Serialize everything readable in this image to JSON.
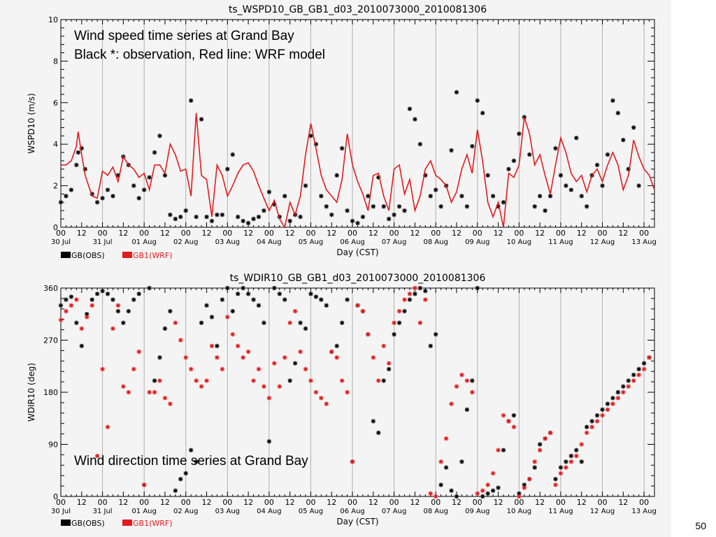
{
  "page": {
    "slide_number": "50"
  },
  "colors": {
    "obs": "#000000",
    "wrf": "#e41a1c",
    "background": "#f4f4f4",
    "grid": "#b0b0b0"
  },
  "x_axis": {
    "days": [
      "30 Jul",
      "31 Jul",
      "01 Aug",
      "02 Aug",
      "03 Aug",
      "04 Aug",
      "05 Aug",
      "06 Aug",
      "07 Aug",
      "08 Aug",
      "09 Aug",
      "10 Aug",
      "11 Aug",
      "12 Aug",
      "13 Aug"
    ],
    "hour_labels": [
      "00",
      "12"
    ],
    "xlabel": "Day (CST)"
  },
  "legend": {
    "obs_label": "GB(OBS)",
    "wrf_label": "GB1(WRF)"
  },
  "chart_data": [
    {
      "type": "line",
      "title": "ts_WSPD10_GB_GB1_d03_2010073000_2010081306",
      "annotation_lines": [
        "Wind speed time series at Grand Bay",
        "Black *: observation, Red line: WRF model"
      ],
      "ylabel": "WSPD10 (m/s)",
      "xlabel": "Day (CST)",
      "xlim_hours": [
        0,
        342
      ],
      "ylim": [
        0,
        10
      ],
      "yticks": [
        0,
        2,
        4,
        6,
        8,
        10
      ],
      "grid": "vertical",
      "legend_placement": "bottom-left",
      "x_unit": "hours since 30 Jul 00 CST",
      "series": [
        {
          "name": "GB(OBS)",
          "style": "asterisk",
          "x": [
            0,
            3,
            6,
            9,
            10,
            12,
            14,
            18,
            21,
            24,
            27,
            30,
            33,
            36,
            39,
            42,
            45,
            48,
            51,
            54,
            57,
            60,
            63,
            66,
            69,
            72,
            75,
            78,
            81,
            84,
            87,
            90,
            93,
            96,
            99,
            102,
            105,
            108,
            111,
            114,
            117,
            120,
            123,
            126,
            129,
            132,
            135,
            138,
            141,
            144,
            147,
            150,
            153,
            156,
            159,
            162,
            165,
            168,
            171,
            174,
            177,
            180,
            183,
            186,
            189,
            192,
            195,
            198,
            201,
            204,
            207,
            210,
            213,
            216,
            219,
            222,
            225,
            228,
            231,
            234,
            237,
            240,
            243,
            246,
            249,
            252,
            255,
            258,
            261,
            264,
            267,
            270,
            273,
            276,
            279,
            282,
            285,
            288,
            291,
            294,
            297,
            300,
            303,
            306,
            309,
            312,
            315,
            318,
            321,
            324,
            327,
            330,
            333
          ],
          "y": [
            1.2,
            1.5,
            1.8,
            3.0,
            3.6,
            3.8,
            2.8,
            1.6,
            1.2,
            1.4,
            1.8,
            1.5,
            2.5,
            3.4,
            3.0,
            2.0,
            1.4,
            1.8,
            2.4,
            3.6,
            4.4,
            2.5,
            0.6,
            0.4,
            0.5,
            0.8,
            6.1,
            0.5,
            5.2,
            0.5,
            0.3,
            0.6,
            0.6,
            2.8,
            3.5,
            0.5,
            0.3,
            0.2,
            0.4,
            0.5,
            0.8,
            1.7,
            1.1,
            0.5,
            1.5,
            0.3,
            0.6,
            0.5,
            2.0,
            4.4,
            4.0,
            1.5,
            1.0,
            0.6,
            2.5,
            3.8,
            0.8,
            0.3,
            0.2,
            0.5,
            1.5,
            1.0,
            2.4,
            1.0,
            0.4,
            0.6,
            1.0,
            0.8,
            5.7,
            5.2,
            4.0,
            2.5,
            1.5,
            1.8,
            1.0,
            2.0,
            3.7,
            6.5,
            1.5,
            1.0,
            3.9,
            6.1,
            5.5,
            2.5,
            1.5,
            1.0,
            1.2,
            2.8,
            3.2,
            4.5,
            5.3,
            3.5,
            1.0,
            1.5,
            0.8,
            1.5,
            3.8,
            2.5,
            2.0,
            1.8,
            4.3,
            1.5,
            1.0,
            2.5,
            3.0,
            2.0,
            3.5,
            6.1,
            5.5,
            4.2,
            2.8,
            4.8,
            2.0
          ]
        },
        {
          "name": "GB1(WRF)",
          "style": "line",
          "x": [
            0,
            3,
            6,
            9,
            10,
            12,
            14,
            18,
            21,
            24,
            27,
            30,
            33,
            36,
            39,
            42,
            45,
            48,
            51,
            54,
            57,
            60,
            63,
            66,
            69,
            72,
            75,
            78,
            81,
            84,
            87,
            90,
            93,
            96,
            99,
            102,
            105,
            108,
            111,
            114,
            117,
            120,
            123,
            126,
            129,
            132,
            135,
            138,
            141,
            144,
            147,
            150,
            153,
            156,
            159,
            162,
            165,
            168,
            171,
            174,
            177,
            180,
            183,
            186,
            189,
            192,
            195,
            198,
            201,
            204,
            207,
            210,
            213,
            216,
            219,
            222,
            225,
            228,
            231,
            234,
            237,
            240,
            243,
            246,
            249,
            252,
            255,
            258,
            261,
            264,
            267,
            270,
            273,
            276,
            279,
            282,
            285,
            288,
            291,
            294,
            297,
            300,
            303,
            306,
            309,
            312,
            315,
            318,
            321,
            324,
            327,
            330,
            333,
            336,
            339,
            342
          ],
          "y": [
            3.0,
            3.0,
            3.2,
            3.9,
            4.6,
            3.5,
            2.5,
            1.5,
            1.4,
            2.7,
            2.5,
            2.9,
            2.2,
            3.4,
            3.0,
            2.8,
            2.4,
            2.6,
            1.8,
            3.0,
            3.0,
            2.6,
            4.0,
            3.5,
            2.7,
            2.8,
            1.5,
            5.5,
            2.5,
            2.3,
            0.5,
            3.0,
            2.5,
            1.5,
            2.0,
            2.6,
            3.0,
            3.1,
            2.7,
            2.0,
            1.4,
            0.8,
            1.3,
            0.4,
            0.0,
            1.2,
            0.6,
            1.5,
            3.5,
            5.0,
            3.8,
            2.5,
            1.8,
            1.5,
            1.2,
            2.3,
            4.5,
            3.0,
            2.2,
            1.6,
            0.8,
            2.5,
            2.6,
            1.5,
            0.8,
            2.8,
            3.0,
            1.6,
            2.3,
            0.8,
            1.5,
            2.8,
            3.2,
            2.5,
            2.3,
            2.0,
            1.2,
            1.7,
            2.8,
            3.5,
            2.6,
            4.7,
            3.2,
            1.2,
            0.5,
            1.2,
            0.0,
            2.6,
            2.4,
            3.0,
            5.3,
            4.5,
            3.0,
            3.5,
            2.5,
            1.6,
            3.0,
            4.3,
            3.6,
            2.6,
            2.2,
            2.5,
            1.7,
            2.5,
            2.8,
            2.2,
            3.0,
            3.6,
            3.0,
            1.8,
            2.5,
            4.2,
            3.4,
            2.8,
            2.5,
            1.8
          ]
        }
      ]
    },
    {
      "type": "scatter",
      "title": "ts_WDIR10_GB_GB1_d03_2010073000_2010081306",
      "annotation_lines": [
        "Wind direction time series at Grand Bay"
      ],
      "ylabel": "WDIR10 (deg)",
      "xlabel": "Day (CST)",
      "xlim_hours": [
        0,
        342
      ],
      "ylim": [
        0,
        360
      ],
      "yticks": [
        0,
        90,
        180,
        270,
        360
      ],
      "grid": "vertical",
      "legend_placement": "bottom-left",
      "x_unit": "hours since 30 Jul 00 CST",
      "series": [
        {
          "name": "GB(OBS)",
          "style": "asterisk",
          "x": [
            0,
            3,
            6,
            9,
            12,
            15,
            18,
            21,
            24,
            27,
            30,
            33,
            36,
            39,
            42,
            45,
            48,
            51,
            54,
            57,
            60,
            63,
            66,
            69,
            72,
            75,
            78,
            81,
            84,
            87,
            90,
            93,
            96,
            99,
            102,
            105,
            108,
            111,
            114,
            117,
            120,
            123,
            126,
            129,
            132,
            135,
            138,
            141,
            144,
            147,
            150,
            153,
            156,
            159,
            162,
            165,
            168,
            171,
            174,
            177,
            180,
            183,
            186,
            189,
            192,
            195,
            198,
            201,
            204,
            207,
            210,
            213,
            216,
            219,
            222,
            225,
            228,
            231,
            234,
            237,
            240,
            243,
            246,
            249,
            252,
            255,
            258,
            261,
            264,
            267,
            270,
            273,
            276,
            279,
            282,
            285,
            288,
            291,
            294,
            297,
            300,
            303,
            306,
            309,
            312,
            315,
            318,
            321,
            324,
            327,
            330,
            333,
            336,
            339
          ],
          "y": [
            330,
            340,
            345,
            300,
            260,
            315,
            340,
            350,
            355,
            350,
            340,
            320,
            300,
            320,
            340,
            350,
            20,
            360,
            200,
            240,
            290,
            320,
            10,
            30,
            40,
            80,
            60,
            300,
            330,
            310,
            260,
            340,
            360,
            320,
            350,
            360,
            350,
            340,
            330,
            300,
            95,
            360,
            350,
            340,
            200,
            230,
            300,
            290,
            350,
            345,
            340,
            330,
            250,
            260,
            300,
            340,
            60,
            330,
            320,
            280,
            130,
            110,
            200,
            220,
            280,
            300,
            320,
            340,
            350,
            360,
            355,
            260,
            280,
            20,
            50,
            10,
            0,
            60,
            150,
            200,
            360,
            0,
            5,
            10,
            15,
            80,
            130,
            140,
            5,
            20,
            30,
            50,
            90,
            100,
            110,
            30,
            50,
            60,
            70,
            80,
            60,
            120,
            130,
            140,
            150,
            160,
            170,
            180,
            190,
            200,
            210,
            220,
            230,
            240
          ]
        },
        {
          "name": "GB1(WRF)",
          "style": "asterisk",
          "x": [
            0,
            3,
            6,
            9,
            12,
            15,
            18,
            21,
            24,
            27,
            30,
            33,
            36,
            39,
            42,
            45,
            48,
            51,
            54,
            57,
            60,
            63,
            66,
            69,
            72,
            75,
            78,
            81,
            84,
            87,
            90,
            93,
            96,
            99,
            102,
            105,
            108,
            111,
            114,
            117,
            120,
            123,
            126,
            129,
            132,
            135,
            138,
            141,
            144,
            147,
            150,
            153,
            156,
            159,
            162,
            165,
            168,
            171,
            174,
            177,
            180,
            183,
            186,
            189,
            192,
            195,
            198,
            201,
            204,
            207,
            210,
            213,
            216,
            219,
            222,
            225,
            228,
            231,
            234,
            237,
            240,
            243,
            246,
            249,
            252,
            255,
            258,
            261,
            264,
            267,
            270,
            273,
            276,
            279,
            282,
            285,
            288,
            291,
            294,
            297,
            300,
            303,
            306,
            309,
            312,
            315,
            318,
            321,
            324,
            327,
            330,
            333,
            336,
            339
          ],
          "y": [
            305,
            320,
            330,
            340,
            290,
            310,
            330,
            70,
            220,
            120,
            290,
            330,
            190,
            180,
            220,
            250,
            20,
            180,
            180,
            200,
            170,
            160,
            300,
            270,
            240,
            220,
            200,
            190,
            200,
            260,
            240,
            220,
            310,
            280,
            260,
            240,
            250,
            200,
            220,
            190,
            170,
            230,
            190,
            240,
            300,
            320,
            250,
            220,
            200,
            180,
            170,
            160,
            250,
            240,
            200,
            180,
            60,
            330,
            320,
            280,
            240,
            200,
            260,
            230,
            300,
            320,
            340,
            350,
            360,
            300,
            340,
            5,
            0,
            60,
            100,
            160,
            190,
            210,
            200,
            180,
            5,
            10,
            20,
            40,
            80,
            140,
            130,
            120,
            0,
            15,
            30,
            60,
            80,
            100,
            110,
            20,
            40,
            50,
            60,
            70,
            90,
            110,
            120,
            130,
            140,
            150,
            160,
            170,
            180,
            190,
            200,
            210,
            220,
            240
          ]
        }
      ]
    }
  ]
}
